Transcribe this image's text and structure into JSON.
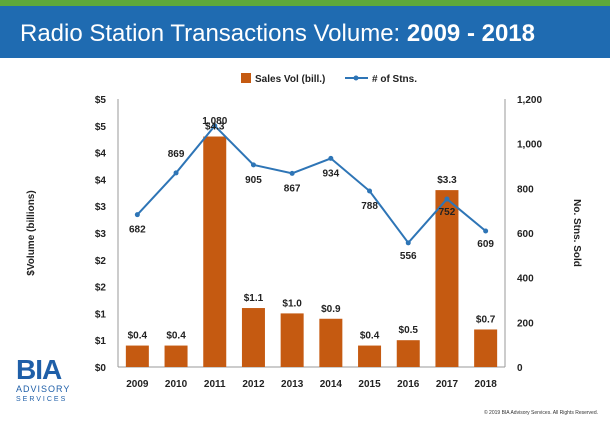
{
  "header": {
    "title_text": "Radio Station Transactions Volume:",
    "title_years": "2009 - 2018"
  },
  "logo": {
    "mark": "BIA",
    "line1": "ADVISORY",
    "line2": "SERVICES"
  },
  "footer": {
    "copyright": "© 2019 BIA Advisory Services. All Rights Reserved."
  },
  "chart_data": {
    "type": "bar",
    "categories": [
      "2009",
      "2010",
      "2011",
      "2012",
      "2013",
      "2014",
      "2015",
      "2016",
      "2017",
      "2018"
    ],
    "series": [
      {
        "name": "Sales Vol (bill.)",
        "type": "bar",
        "axis": "left",
        "color": "#c55a11",
        "values": [
          0.4,
          0.4,
          4.3,
          1.1,
          1.0,
          0.9,
          0.4,
          0.5,
          3.3,
          0.7
        ],
        "labels": [
          "$0.4",
          "$0.4",
          "$4.3",
          "$1.1",
          "$1.0",
          "$0.9",
          "$0.4",
          "$0.5",
          "$3.3",
          "$0.7"
        ]
      },
      {
        "name": "# of Stns.",
        "type": "line",
        "axis": "right",
        "color": "#2e75b6",
        "values": [
          682,
          869,
          1080,
          905,
          867,
          934,
          788,
          556,
          752,
          609
        ],
        "labels": [
          "682",
          "869",
          "1,080",
          "905",
          "867",
          "934",
          "788",
          "556",
          "752",
          "609"
        ]
      }
    ],
    "ylabel": "$Volume (billions)",
    "y2label": "No. Stns. Sold",
    "ylim": [
      0,
      5
    ],
    "y2lim": [
      0,
      1200
    ],
    "yticks": [
      "$0",
      "$1",
      "$1",
      "$2",
      "$2",
      "$3",
      "$3",
      "$4",
      "$4",
      "$5",
      "$5"
    ],
    "y2ticks": [
      "0",
      "200",
      "400",
      "600",
      "800",
      "1,000",
      "1,200"
    ],
    "grid": false,
    "legend_position": "top"
  }
}
